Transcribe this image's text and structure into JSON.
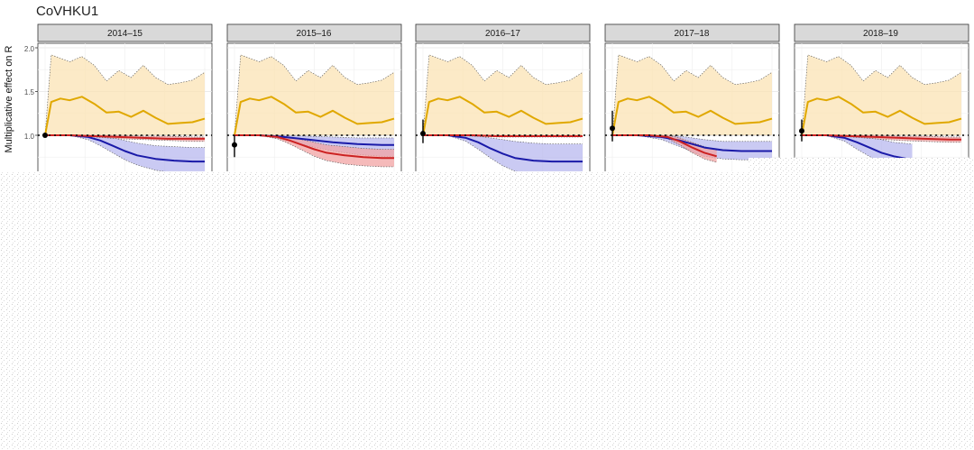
{
  "chart_data": {
    "type": "line",
    "title": "CoVHKU1",
    "ylabel": "Multiplicative effect on R",
    "yticks": [
      "1.0",
      "1.5",
      "2.0"
    ],
    "ylim": [
      0.5,
      2.1
    ],
    "xlim": [
      0,
      52
    ],
    "reference_line": 1.0,
    "grid": true,
    "colors": {
      "gold": "#e0a800",
      "gold_fill": "#fbe3b4",
      "red": "#cc2222",
      "red_fill": "#f2a3a3",
      "blue": "#1a1aa8",
      "blue_fill": "#b8b8ef",
      "point": "#000000",
      "refline": "#000000"
    },
    "panels": [
      {
        "label": "2014–15",
        "point": {
          "x": 0,
          "y": 1.0,
          "ci": [
            1.0,
            1.0
          ]
        },
        "gold": {
          "x": [
            0,
            2,
            5,
            8,
            12,
            16,
            20,
            24,
            28,
            32,
            36,
            40,
            44,
            48,
            52
          ],
          "y": [
            1.0,
            1.38,
            1.42,
            1.4,
            1.44,
            1.36,
            1.26,
            1.27,
            1.21,
            1.28,
            1.2,
            1.13,
            1.14,
            1.15,
            1.19
          ],
          "lo": [
            1.0,
            1.0,
            1.0,
            1.0,
            1.0,
            1.0,
            1.0,
            1.0,
            1.0,
            1.0,
            1.0,
            1.0,
            1.0,
            1.0,
            1.0
          ],
          "hi": [
            1.0,
            1.92,
            1.88,
            1.84,
            1.9,
            1.8,
            1.62,
            1.74,
            1.66,
            1.8,
            1.66,
            1.58,
            1.6,
            1.63,
            1.72
          ]
        },
        "red": {
          "x": [
            0,
            8,
            16,
            24,
            32,
            40,
            48,
            52
          ],
          "y": [
            1.0,
            1.0,
            0.99,
            0.98,
            0.97,
            0.96,
            0.96,
            0.96
          ],
          "lo": [
            1.0,
            1.0,
            0.98,
            0.96,
            0.95,
            0.94,
            0.93,
            0.93
          ],
          "hi": [
            1.0,
            1.0,
            1.0,
            1.0,
            0.99,
            0.99,
            0.98,
            0.98
          ]
        },
        "blue": {
          "x": [
            0,
            8,
            14,
            18,
            22,
            26,
            30,
            36,
            42,
            48,
            52
          ],
          "y": [
            1.0,
            1.0,
            0.98,
            0.94,
            0.88,
            0.82,
            0.77,
            0.73,
            0.71,
            0.7,
            0.7
          ],
          "lo": [
            1.0,
            1.0,
            0.95,
            0.88,
            0.8,
            0.72,
            0.66,
            0.6,
            0.57,
            0.56,
            0.56
          ],
          "hi": [
            1.0,
            1.0,
            1.0,
            0.99,
            0.97,
            0.94,
            0.91,
            0.88,
            0.87,
            0.86,
            0.86
          ]
        }
      },
      {
        "label": "2015–16",
        "point": {
          "x": 0,
          "y": 0.89,
          "ci": [
            0.75,
            1.0
          ]
        },
        "gold": {
          "x": [
            0,
            2,
            5,
            8,
            12,
            16,
            20,
            24,
            28,
            32,
            36,
            40,
            44,
            48,
            52
          ],
          "y": [
            1.0,
            1.38,
            1.42,
            1.4,
            1.44,
            1.36,
            1.26,
            1.27,
            1.21,
            1.28,
            1.2,
            1.13,
            1.14,
            1.15,
            1.19
          ],
          "lo": [
            1.0,
            1.0,
            1.0,
            1.0,
            1.0,
            1.0,
            1.0,
            1.0,
            1.0,
            1.0,
            1.0,
            1.0,
            1.0,
            1.0,
            1.0
          ],
          "hi": [
            1.0,
            1.92,
            1.88,
            1.84,
            1.9,
            1.8,
            1.62,
            1.74,
            1.66,
            1.8,
            1.66,
            1.58,
            1.6,
            1.63,
            1.72
          ]
        },
        "red": {
          "x": [
            0,
            8,
            14,
            18,
            22,
            26,
            30,
            36,
            42,
            48,
            52
          ],
          "y": [
            1.0,
            1.0,
            0.98,
            0.94,
            0.89,
            0.84,
            0.8,
            0.77,
            0.75,
            0.74,
            0.74
          ],
          "lo": [
            1.0,
            1.0,
            0.96,
            0.9,
            0.83,
            0.76,
            0.71,
            0.67,
            0.65,
            0.64,
            0.64
          ],
          "hi": [
            1.0,
            1.0,
            1.0,
            0.98,
            0.95,
            0.92,
            0.89,
            0.87,
            0.85,
            0.84,
            0.84
          ]
        },
        "blue": {
          "x": [
            0,
            8,
            16,
            24,
            32,
            40,
            48,
            52
          ],
          "y": [
            1.0,
            1.0,
            0.98,
            0.95,
            0.92,
            0.9,
            0.89,
            0.89
          ],
          "lo": [
            1.0,
            1.0,
            0.95,
            0.88,
            0.82,
            0.78,
            0.76,
            0.76
          ],
          "hi": [
            1.0,
            1.0,
            1.0,
            0.99,
            0.98,
            0.97,
            0.97,
            0.97
          ]
        }
      },
      {
        "label": "2016–17",
        "point": {
          "x": 0,
          "y": 1.02,
          "ci": [
            0.91,
            1.18
          ]
        },
        "gold": {
          "x": [
            0,
            2,
            5,
            8,
            12,
            16,
            20,
            24,
            28,
            32,
            36,
            40,
            44,
            48,
            52
          ],
          "y": [
            1.0,
            1.38,
            1.42,
            1.4,
            1.44,
            1.36,
            1.26,
            1.27,
            1.21,
            1.28,
            1.2,
            1.13,
            1.14,
            1.15,
            1.19
          ],
          "lo": [
            1.0,
            1.0,
            1.0,
            1.0,
            1.0,
            1.0,
            1.0,
            1.0,
            1.0,
            1.0,
            1.0,
            1.0,
            1.0,
            1.0,
            1.0
          ],
          "hi": [
            1.0,
            1.92,
            1.88,
            1.84,
            1.9,
            1.8,
            1.62,
            1.74,
            1.66,
            1.8,
            1.66,
            1.58,
            1.6,
            1.63,
            1.72
          ]
        },
        "red": {
          "x": [
            0,
            8,
            16,
            24,
            32,
            40,
            48,
            52
          ],
          "y": [
            1.0,
            1.0,
            1.0,
            0.99,
            0.99,
            0.99,
            0.99,
            0.99
          ],
          "lo": [
            1.0,
            1.0,
            0.99,
            0.98,
            0.98,
            0.98,
            0.98,
            0.98
          ],
          "hi": [
            1.0,
            1.0,
            1.0,
            1.0,
            1.0,
            1.0,
            1.0,
            1.0
          ]
        },
        "blue": {
          "x": [
            0,
            8,
            14,
            18,
            22,
            26,
            30,
            36,
            42,
            48,
            52
          ],
          "y": [
            1.0,
            1.0,
            0.97,
            0.92,
            0.85,
            0.79,
            0.74,
            0.71,
            0.7,
            0.7,
            0.7
          ],
          "lo": [
            1.0,
            1.0,
            0.93,
            0.84,
            0.74,
            0.65,
            0.59,
            0.55,
            0.53,
            0.52,
            0.52
          ],
          "hi": [
            1.0,
            1.0,
            1.0,
            0.99,
            0.97,
            0.95,
            0.93,
            0.91,
            0.9,
            0.9,
            0.9
          ]
        }
      },
      {
        "label": "2017–18",
        "point": {
          "x": 0,
          "y": 1.08,
          "ci": [
            0.93,
            1.28
          ]
        },
        "gold": {
          "x": [
            0,
            2,
            5,
            8,
            12,
            16,
            20,
            24,
            28,
            32,
            36,
            40,
            44,
            48,
            52
          ],
          "y": [
            1.0,
            1.38,
            1.42,
            1.4,
            1.44,
            1.36,
            1.26,
            1.27,
            1.21,
            1.28,
            1.2,
            1.13,
            1.14,
            1.15,
            1.19
          ],
          "lo": [
            1.0,
            1.0,
            1.0,
            1.0,
            1.0,
            1.0,
            1.0,
            1.0,
            1.0,
            1.0,
            1.0,
            1.0,
            1.0,
            1.0,
            1.0
          ],
          "hi": [
            1.0,
            1.92,
            1.88,
            1.84,
            1.9,
            1.8,
            1.62,
            1.74,
            1.66,
            1.8,
            1.66,
            1.58,
            1.6,
            1.63,
            1.72
          ]
        },
        "red": {
          "x": [
            0,
            12,
            18,
            22,
            26,
            30,
            34
          ],
          "y": [
            1.0,
            1.0,
            0.98,
            0.93,
            0.86,
            0.8,
            0.76
          ],
          "lo": [
            1.0,
            1.0,
            0.96,
            0.89,
            0.8,
            0.73,
            0.69
          ],
          "hi": [
            1.0,
            1.0,
            1.0,
            0.97,
            0.92,
            0.87,
            0.83
          ]
        },
        "blue": {
          "x": [
            0,
            8,
            16,
            22,
            26,
            30,
            36,
            42,
            48,
            52
          ],
          "y": [
            1.0,
            1.0,
            0.98,
            0.94,
            0.9,
            0.86,
            0.83,
            0.82,
            0.82,
            0.82
          ],
          "lo": [
            1.0,
            1.0,
            0.95,
            0.87,
            0.81,
            0.76,
            0.73,
            0.72,
            0.72,
            0.72
          ],
          "hi": [
            1.0,
            1.0,
            1.0,
            0.99,
            0.97,
            0.95,
            0.93,
            0.93,
            0.93,
            0.93
          ]
        }
      },
      {
        "label": "2018–19",
        "point": {
          "x": 0,
          "y": 1.05,
          "ci": [
            0.93,
            1.18
          ]
        },
        "gold": {
          "x": [
            0,
            2,
            5,
            8,
            12,
            16,
            20,
            24,
            28,
            32,
            36,
            40,
            44,
            48,
            52
          ],
          "y": [
            1.0,
            1.38,
            1.42,
            1.4,
            1.44,
            1.36,
            1.26,
            1.27,
            1.21,
            1.28,
            1.2,
            1.13,
            1.14,
            1.15,
            1.19
          ],
          "lo": [
            1.0,
            1.0,
            1.0,
            1.0,
            1.0,
            1.0,
            1.0,
            1.0,
            1.0,
            1.0,
            1.0,
            1.0,
            1.0,
            1.0,
            1.0
          ],
          "hi": [
            1.0,
            1.92,
            1.88,
            1.84,
            1.9,
            1.8,
            1.62,
            1.74,
            1.66,
            1.8,
            1.66,
            1.58,
            1.6,
            1.63,
            1.72
          ]
        },
        "red": {
          "x": [
            0,
            8,
            16,
            24,
            32,
            40,
            48,
            52
          ],
          "y": [
            1.0,
            1.0,
            0.99,
            0.98,
            0.97,
            0.96,
            0.95,
            0.95
          ],
          "lo": [
            1.0,
            1.0,
            0.98,
            0.96,
            0.94,
            0.93,
            0.92,
            0.92
          ],
          "hi": [
            1.0,
            1.0,
            1.0,
            1.0,
            0.99,
            0.99,
            0.98,
            0.98
          ]
        },
        "blue": {
          "x": [
            0,
            8,
            14,
            18,
            22,
            26,
            30,
            36
          ],
          "y": [
            1.0,
            1.0,
            0.97,
            0.92,
            0.86,
            0.8,
            0.76,
            0.72
          ],
          "lo": [
            1.0,
            1.0,
            0.93,
            0.84,
            0.76,
            0.68,
            0.62,
            0.57
          ],
          "hi": [
            1.0,
            1.0,
            1.0,
            0.99,
            0.97,
            0.95,
            0.92,
            0.9
          ]
        }
      }
    ]
  }
}
